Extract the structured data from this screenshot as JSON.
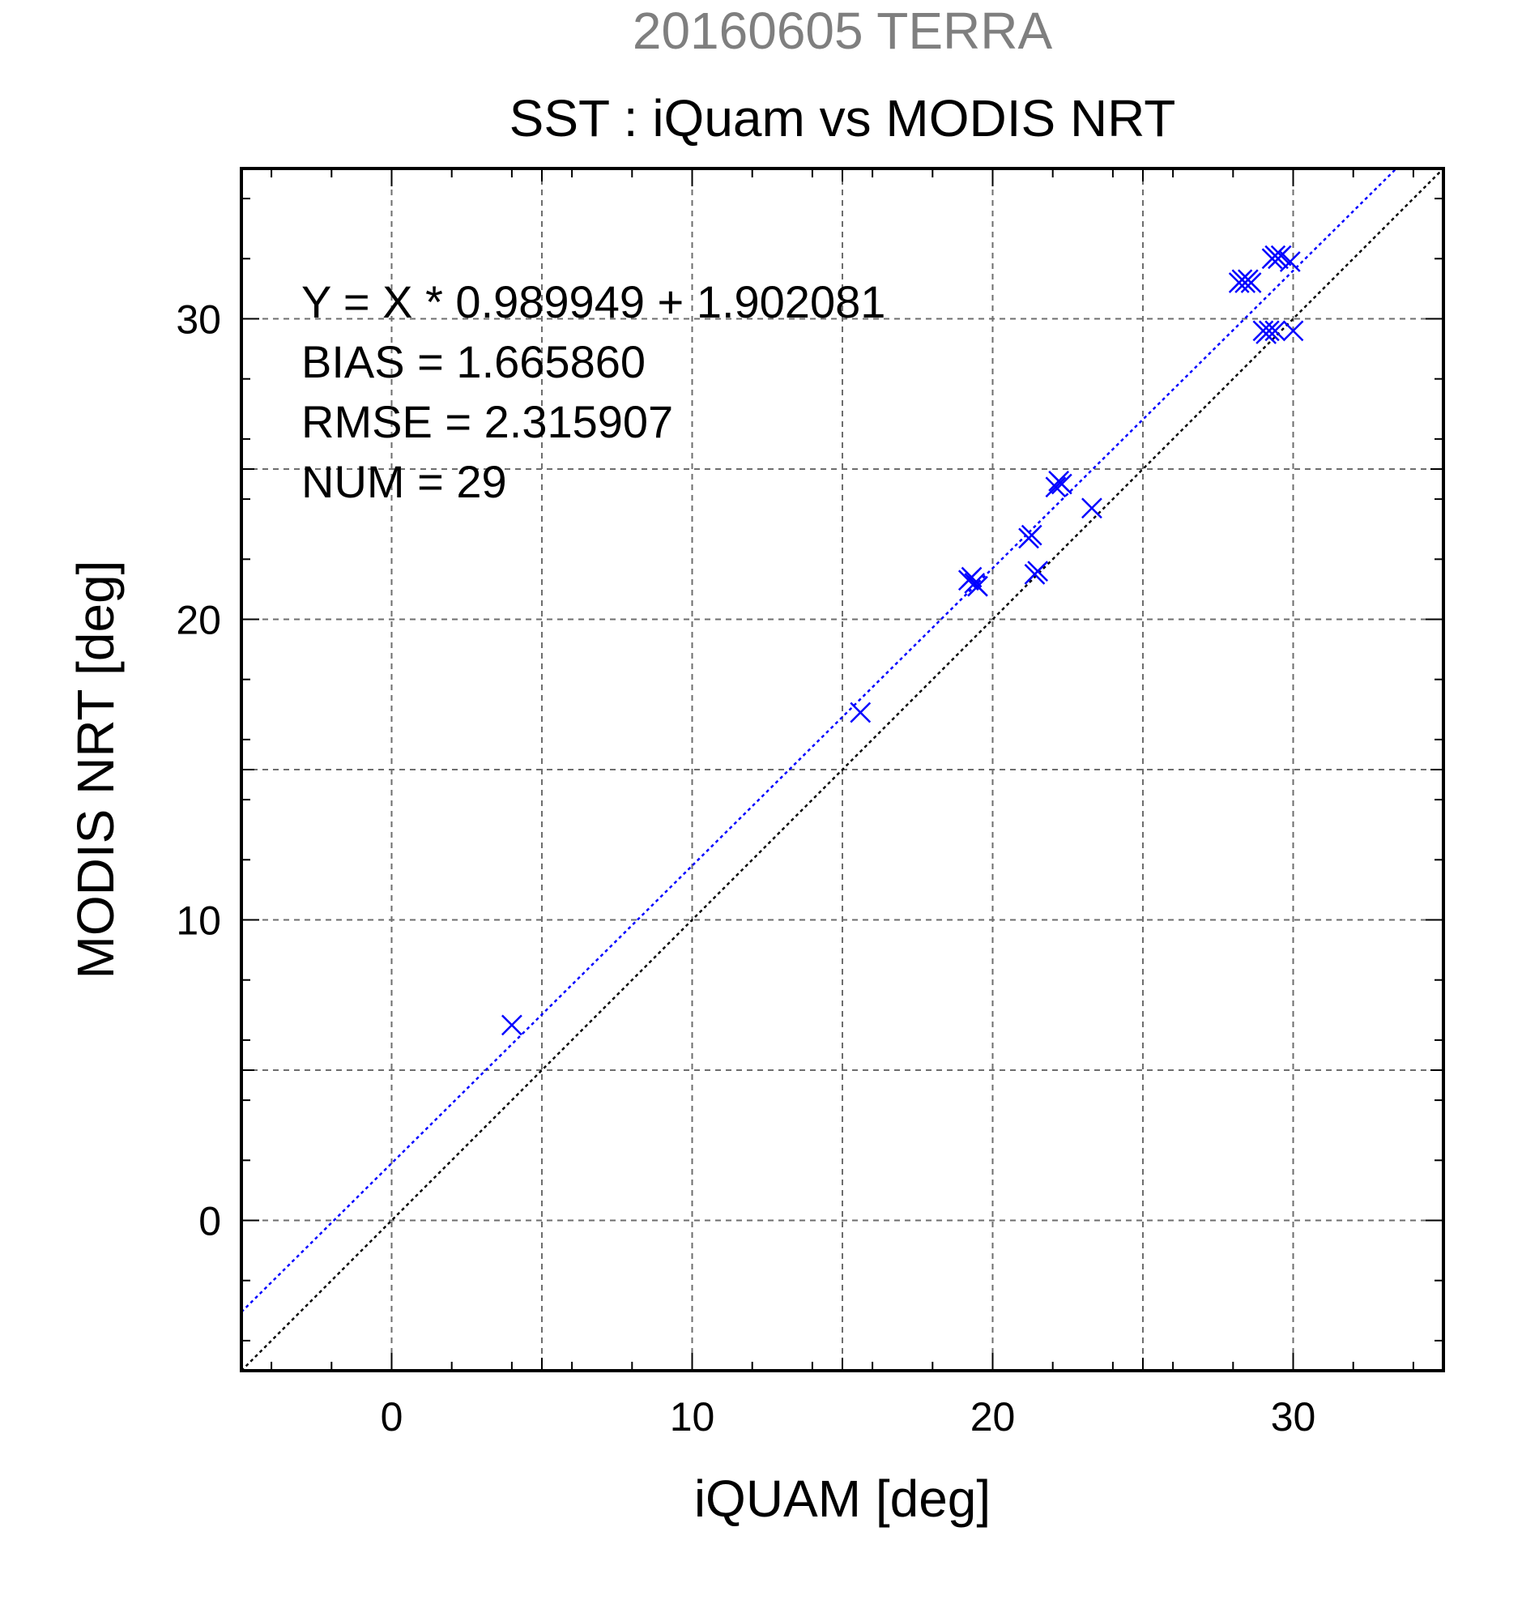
{
  "header": {
    "date_title": "20160605 TERRA",
    "main_title": "SST : iQuam vs MODIS NRT"
  },
  "stats": {
    "regression": "Y = X * 0.989949 + 1.902081",
    "bias": "BIAS = 1.665860",
    "rmse": "RMSE = 2.315907",
    "num": "NUM = 29"
  },
  "chart_data": {
    "type": "scatter",
    "title": "SST : iQuam vs MODIS NRT",
    "subtitle": "20160605 TERRA",
    "xlabel": "iQUAM [deg]",
    "ylabel": "MODIS NRT [deg]",
    "xlim": [
      -5,
      35
    ],
    "ylim": [
      -5,
      35
    ],
    "x_ticks": [
      0,
      10,
      20,
      30
    ],
    "y_ticks": [
      0,
      10,
      20,
      30
    ],
    "x_tick_labels": [
      "0",
      "10",
      "20",
      "30"
    ],
    "y_tick_labels": [
      "0",
      "10",
      "20",
      "30"
    ],
    "minor_step": 2,
    "grid": true,
    "grid_step": 5,
    "marker": "x",
    "colors": {
      "points": "#0000ff",
      "fit_line": "#0000ff",
      "identity_line": "#000000"
    },
    "fit_line": {
      "slope": 0.989949,
      "intercept": 1.902081
    },
    "identity_line": {
      "slope": 1,
      "intercept": 0
    },
    "points": [
      {
        "x": 4.0,
        "y": 6.5
      },
      {
        "x": 15.6,
        "y": 16.9
      },
      {
        "x": 19.2,
        "y": 21.3
      },
      {
        "x": 19.3,
        "y": 21.4
      },
      {
        "x": 19.4,
        "y": 21.2
      },
      {
        "x": 19.5,
        "y": 21.1
      },
      {
        "x": 21.2,
        "y": 22.7
      },
      {
        "x": 21.3,
        "y": 22.8
      },
      {
        "x": 21.4,
        "y": 21.5
      },
      {
        "x": 21.5,
        "y": 21.6
      },
      {
        "x": 22.1,
        "y": 24.4
      },
      {
        "x": 22.2,
        "y": 24.6
      },
      {
        "x": 22.3,
        "y": 24.5
      },
      {
        "x": 23.3,
        "y": 23.7
      },
      {
        "x": 28.2,
        "y": 31.2
      },
      {
        "x": 28.3,
        "y": 31.3
      },
      {
        "x": 28.4,
        "y": 31.2
      },
      {
        "x": 28.5,
        "y": 31.3
      },
      {
        "x": 28.6,
        "y": 31.2
      },
      {
        "x": 29.0,
        "y": 29.6
      },
      {
        "x": 29.1,
        "y": 29.5
      },
      {
        "x": 29.2,
        "y": 29.6
      },
      {
        "x": 29.3,
        "y": 32.0
      },
      {
        "x": 29.4,
        "y": 32.1
      },
      {
        "x": 29.4,
        "y": 29.6
      },
      {
        "x": 29.5,
        "y": 32.0
      },
      {
        "x": 29.6,
        "y": 32.1
      },
      {
        "x": 29.9,
        "y": 31.9
      },
      {
        "x": 30.0,
        "y": 29.6
      }
    ]
  }
}
